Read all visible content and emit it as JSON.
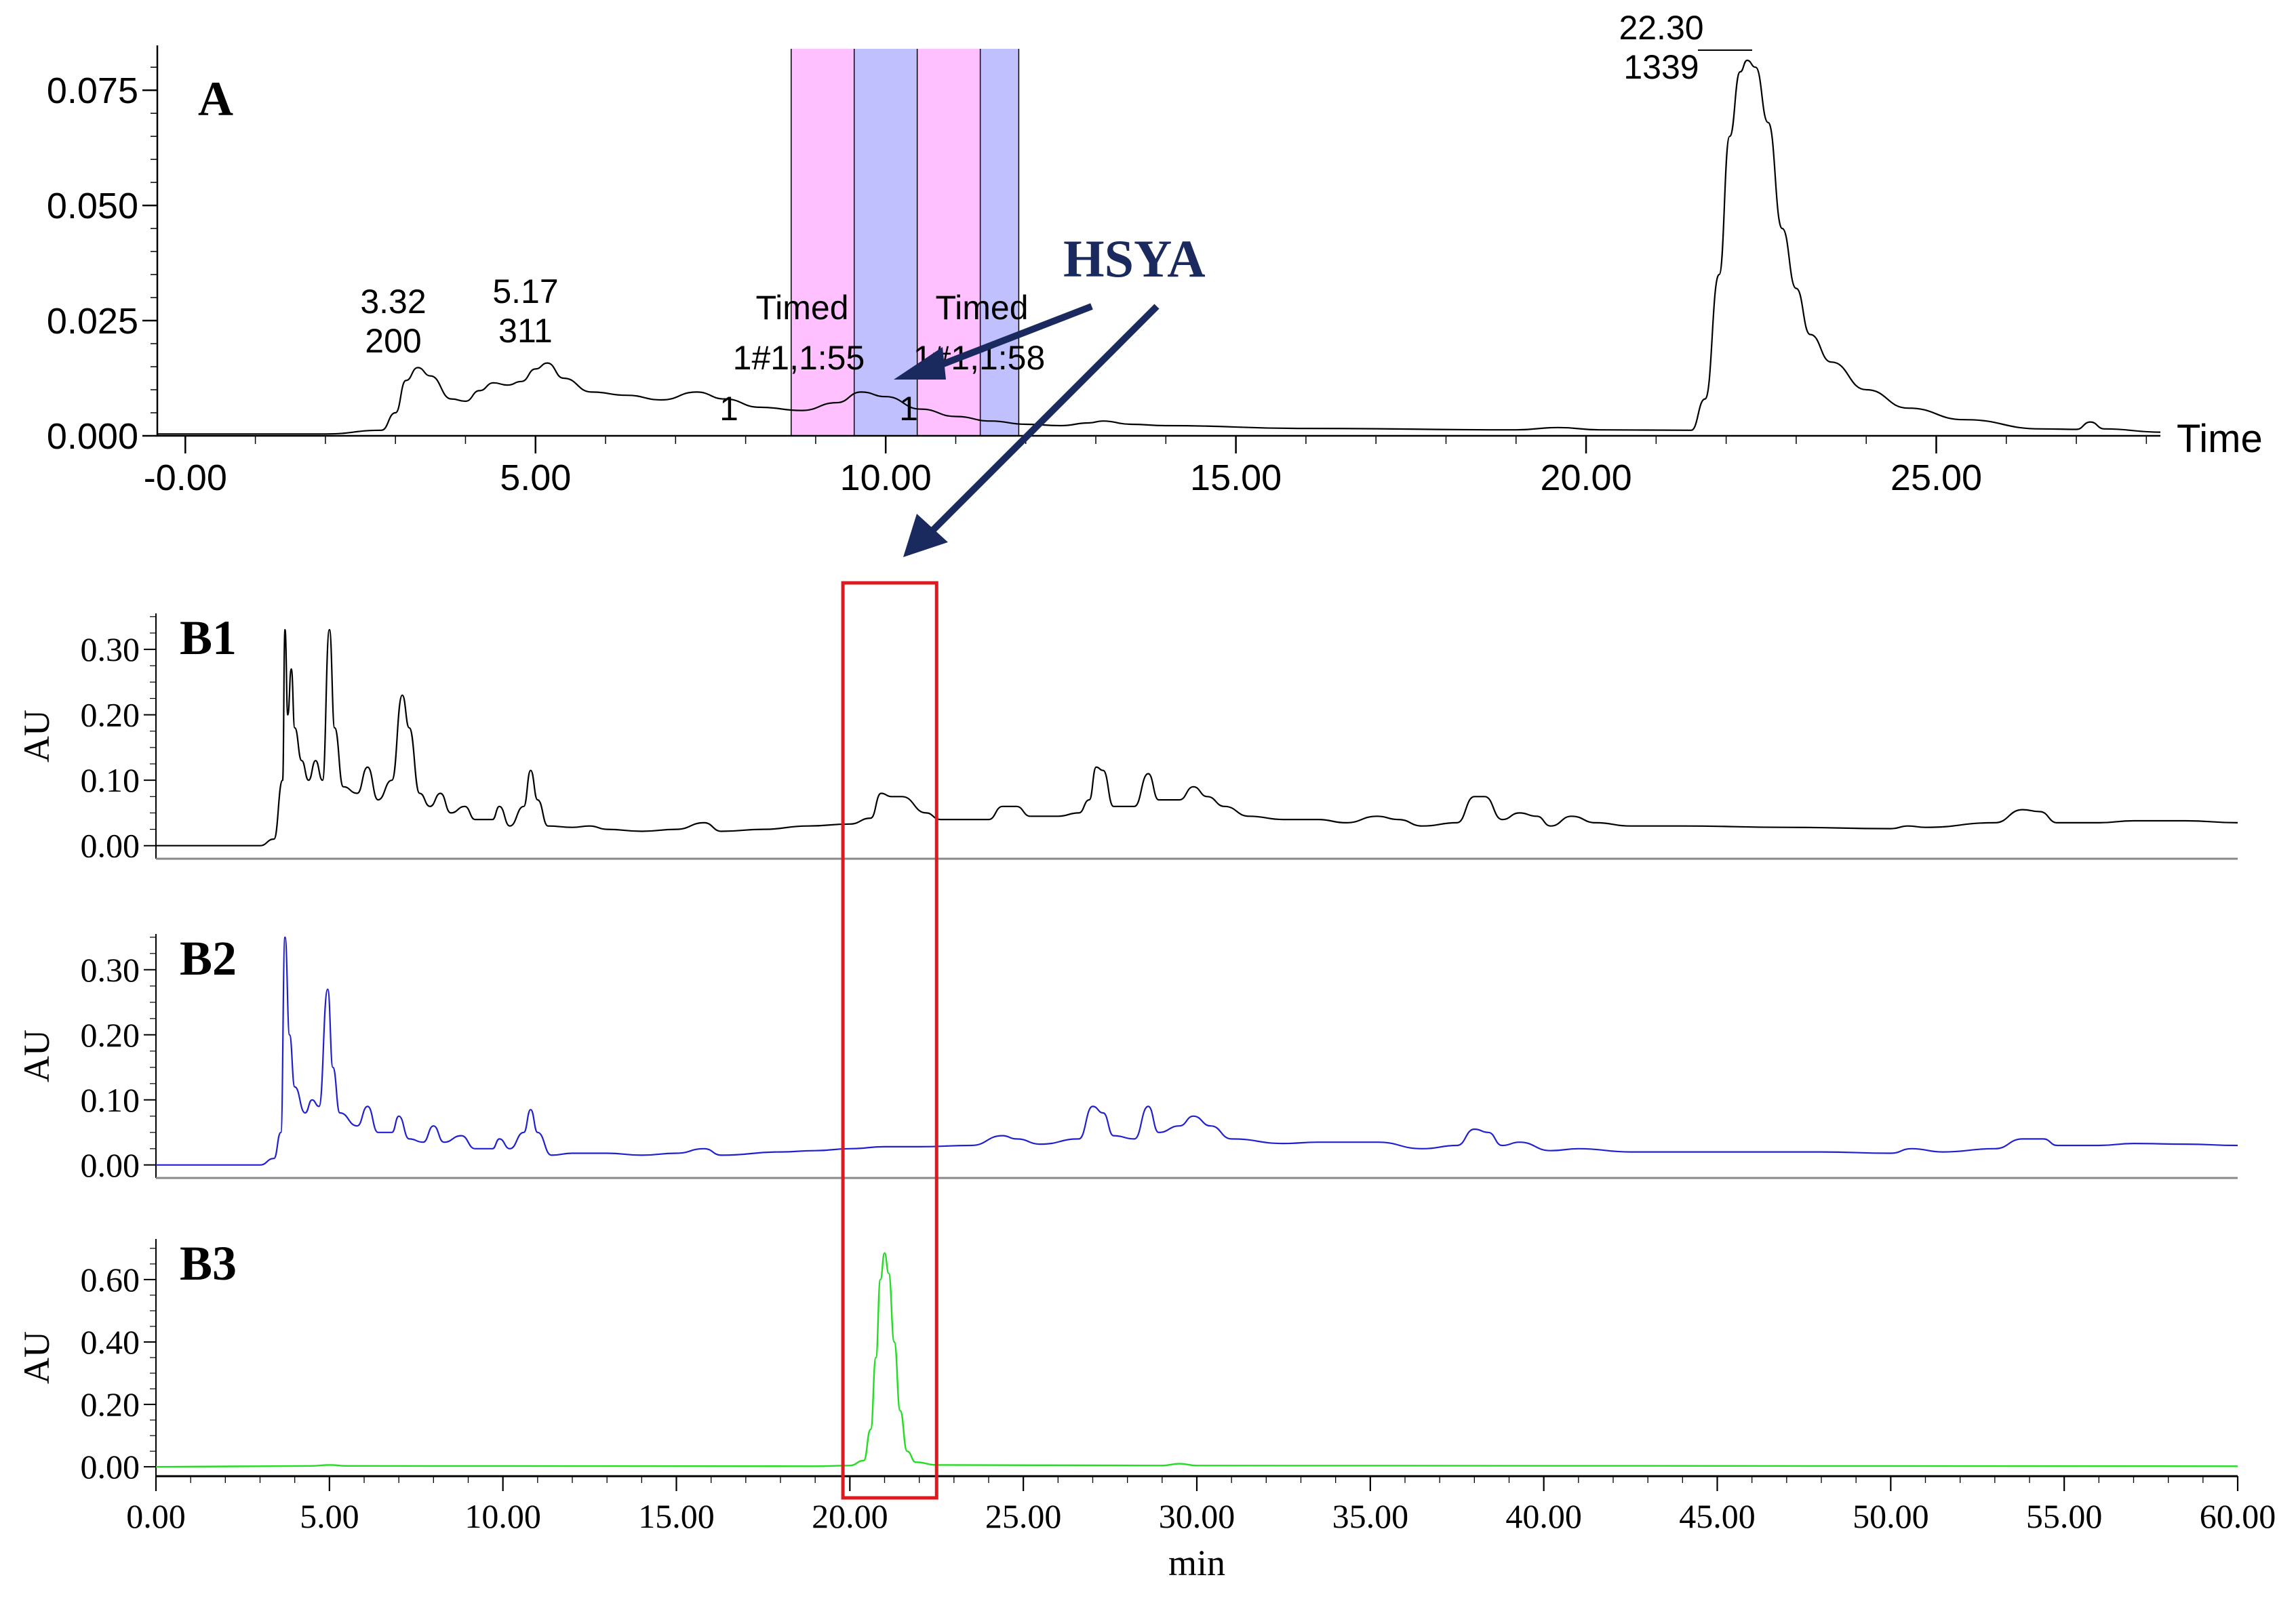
{
  "figure": {
    "hsya_label": "HSYA",
    "hsya_color": "#1a2a5e",
    "highlight_box_color": "#e0191f",
    "fraction_colors": [
      "#ffc0ff",
      "#c0c0ff",
      "#ffc0ff",
      "#c0c0ff"
    ]
  },
  "chart_data": [
    {
      "id": "A",
      "type": "line",
      "panel_label": "A",
      "xlabel": "Time",
      "ylabel": "",
      "xlim": [
        -0.4,
        28.2
      ],
      "ylim": [
        0.0,
        0.084
      ],
      "x_ticks": [
        -0.0,
        5.0,
        10.0,
        15.0,
        20.0,
        25.0
      ],
      "x_tick_labels": [
        "-0.00",
        "5.00",
        "10.00",
        "15.00",
        "20.00",
        "25.00"
      ],
      "y_ticks": [
        0.0,
        0.025,
        0.05,
        0.075
      ],
      "y_tick_labels": [
        "0.000",
        "0.025",
        "0.050",
        "0.075"
      ],
      "color": "#000000",
      "fraction_bands": [
        {
          "start": 8.65,
          "end": 9.55
        },
        {
          "start": 9.55,
          "end": 10.45
        },
        {
          "start": 10.45,
          "end": 11.35
        },
        {
          "start": 11.35,
          "end": 11.9
        }
      ],
      "peak_labels": [
        {
          "x": 3.32,
          "lines": [
            "3.32",
            "200"
          ]
        },
        {
          "x": 5.17,
          "lines": [
            "5.17",
            "311"
          ]
        },
        {
          "x": 22.3,
          "lines": [
            "22.30",
            "1339"
          ]
        }
      ],
      "fraction_labels": [
        {
          "lines": [
            "Timed",
            "1#1,1:55",
            "1"
          ]
        },
        {
          "lines": [
            "Timed",
            "1#1,1:58",
            "1"
          ]
        }
      ],
      "baseline": [
        [
          -0.4,
          0.0004
        ],
        [
          2.0,
          0.0004
        ],
        [
          2.8,
          0.0012
        ],
        [
          3.0,
          0.005
        ],
        [
          3.15,
          0.012
        ],
        [
          3.32,
          0.0148
        ],
        [
          3.5,
          0.013
        ],
        [
          3.8,
          0.008
        ],
        [
          4.0,
          0.0075
        ],
        [
          4.2,
          0.0098
        ],
        [
          4.4,
          0.0115
        ],
        [
          4.6,
          0.011
        ],
        [
          4.8,
          0.0118
        ],
        [
          5.0,
          0.0145
        ],
        [
          5.17,
          0.0158
        ],
        [
          5.4,
          0.0125
        ],
        [
          5.8,
          0.0095
        ],
        [
          6.3,
          0.0088
        ],
        [
          6.8,
          0.0078
        ],
        [
          7.3,
          0.0095
        ],
        [
          7.7,
          0.008
        ],
        [
          8.2,
          0.0062
        ],
        [
          8.8,
          0.0055
        ],
        [
          9.3,
          0.0072
        ],
        [
          9.65,
          0.0095
        ],
        [
          10.0,
          0.0085
        ],
        [
          10.5,
          0.0058
        ],
        [
          11.0,
          0.0042
        ],
        [
          11.5,
          0.0032
        ],
        [
          12.0,
          0.0025
        ],
        [
          12.5,
          0.0022
        ],
        [
          12.9,
          0.0028
        ],
        [
          13.1,
          0.0032
        ],
        [
          13.5,
          0.0025
        ],
        [
          14.0,
          0.0022
        ],
        [
          16.0,
          0.0016
        ],
        [
          19.0,
          0.0013
        ],
        [
          19.6,
          0.0018
        ],
        [
          20.2,
          0.0013
        ],
        [
          21.5,
          0.0012
        ],
        [
          21.7,
          0.008
        ],
        [
          21.9,
          0.035
        ],
        [
          22.05,
          0.065
        ],
        [
          22.2,
          0.079
        ],
        [
          22.3,
          0.0815
        ],
        [
          22.42,
          0.08
        ],
        [
          22.6,
          0.068
        ],
        [
          22.8,
          0.045
        ],
        [
          23.0,
          0.032
        ],
        [
          23.2,
          0.022
        ],
        [
          23.5,
          0.016
        ],
        [
          24.0,
          0.01
        ],
        [
          24.6,
          0.006
        ],
        [
          25.4,
          0.0035
        ],
        [
          26.5,
          0.0015
        ],
        [
          27.0,
          0.0014
        ],
        [
          27.2,
          0.003
        ],
        [
          27.4,
          0.0015
        ],
        [
          28.2,
          0.0008
        ]
      ]
    },
    {
      "id": "B1",
      "type": "line",
      "panel_label": "B1",
      "xlabel": "",
      "ylabel": "AU",
      "xlim": [
        0,
        60
      ],
      "ylim": [
        -0.02,
        0.355
      ],
      "y_ticks": [
        0.0,
        0.1,
        0.2,
        0.3
      ],
      "y_tick_labels": [
        "0.00",
        "0.10",
        "0.20",
        "0.30"
      ],
      "color": "#000000",
      "series": [
        [
          0,
          0.0
        ],
        [
          3.0,
          0.0
        ],
        [
          3.4,
          0.01
        ],
        [
          3.65,
          0.1
        ],
        [
          3.72,
          0.33
        ],
        [
          3.8,
          0.2
        ],
        [
          3.9,
          0.27
        ],
        [
          4.0,
          0.18
        ],
        [
          4.2,
          0.13
        ],
        [
          4.4,
          0.1
        ],
        [
          4.6,
          0.13
        ],
        [
          4.8,
          0.1
        ],
        [
          5.0,
          0.33
        ],
        [
          5.15,
          0.18
        ],
        [
          5.4,
          0.09
        ],
        [
          5.8,
          0.08
        ],
        [
          6.1,
          0.12
        ],
        [
          6.4,
          0.07
        ],
        [
          6.8,
          0.1
        ],
        [
          7.1,
          0.23
        ],
        [
          7.3,
          0.18
        ],
        [
          7.6,
          0.08
        ],
        [
          7.9,
          0.06
        ],
        [
          8.2,
          0.08
        ],
        [
          8.5,
          0.05
        ],
        [
          8.9,
          0.06
        ],
        [
          9.2,
          0.04
        ],
        [
          9.7,
          0.04
        ],
        [
          9.9,
          0.06
        ],
        [
          10.2,
          0.03
        ],
        [
          10.6,
          0.06
        ],
        [
          10.8,
          0.115
        ],
        [
          11.0,
          0.07
        ],
        [
          11.3,
          0.03
        ],
        [
          12.0,
          0.028
        ],
        [
          12.5,
          0.03
        ],
        [
          13.0,
          0.025
        ],
        [
          14.0,
          0.022
        ],
        [
          15.0,
          0.025
        ],
        [
          15.8,
          0.035
        ],
        [
          16.3,
          0.022
        ],
        [
          17.5,
          0.025
        ],
        [
          18.8,
          0.03
        ],
        [
          20.0,
          0.033
        ],
        [
          20.6,
          0.042
        ],
        [
          20.9,
          0.08
        ],
        [
          21.2,
          0.075
        ],
        [
          21.5,
          0.075
        ],
        [
          22.2,
          0.05
        ],
        [
          22.6,
          0.04
        ],
        [
          23.5,
          0.04
        ],
        [
          24.0,
          0.04
        ],
        [
          24.4,
          0.06
        ],
        [
          24.8,
          0.06
        ],
        [
          25.2,
          0.045
        ],
        [
          26.0,
          0.045
        ],
        [
          26.6,
          0.05
        ],
        [
          26.9,
          0.07
        ],
        [
          27.1,
          0.12
        ],
        [
          27.3,
          0.115
        ],
        [
          27.6,
          0.06
        ],
        [
          28.2,
          0.06
        ],
        [
          28.6,
          0.11
        ],
        [
          28.9,
          0.07
        ],
        [
          29.5,
          0.07
        ],
        [
          29.9,
          0.09
        ],
        [
          30.3,
          0.075
        ],
        [
          30.8,
          0.06
        ],
        [
          31.5,
          0.045
        ],
        [
          32.5,
          0.04
        ],
        [
          33.5,
          0.04
        ],
        [
          34.3,
          0.035
        ],
        [
          35.2,
          0.045
        ],
        [
          35.8,
          0.04
        ],
        [
          36.5,
          0.03
        ],
        [
          37.5,
          0.035
        ],
        [
          38.0,
          0.075
        ],
        [
          38.3,
          0.075
        ],
        [
          38.8,
          0.04
        ],
        [
          39.3,
          0.05
        ],
        [
          39.8,
          0.045
        ],
        [
          40.2,
          0.03
        ],
        [
          40.8,
          0.045
        ],
        [
          41.5,
          0.035
        ],
        [
          42.5,
          0.03
        ],
        [
          44.0,
          0.03
        ],
        [
          47.0,
          0.028
        ],
        [
          50.0,
          0.026
        ],
        [
          50.5,
          0.03
        ],
        [
          51.0,
          0.028
        ],
        [
          53.0,
          0.035
        ],
        [
          53.8,
          0.055
        ],
        [
          54.3,
          0.052
        ],
        [
          54.8,
          0.035
        ],
        [
          56.0,
          0.035
        ],
        [
          57.0,
          0.038
        ],
        [
          58.5,
          0.038
        ],
        [
          60,
          0.035
        ]
      ]
    },
    {
      "id": "B2",
      "type": "line",
      "panel_label": "B2",
      "xlabel": "",
      "ylabel": "AU",
      "xlim": [
        0,
        60
      ],
      "ylim": [
        -0.02,
        0.355
      ],
      "y_ticks": [
        0.0,
        0.1,
        0.2,
        0.3
      ],
      "y_tick_labels": [
        "0.00",
        "0.10",
        "0.20",
        "0.30"
      ],
      "color": "#2020d0",
      "series": [
        [
          0,
          0.0
        ],
        [
          3.0,
          0.0
        ],
        [
          3.4,
          0.01
        ],
        [
          3.6,
          0.05
        ],
        [
          3.72,
          0.35
        ],
        [
          3.85,
          0.2
        ],
        [
          4.0,
          0.12
        ],
        [
          4.3,
          0.08
        ],
        [
          4.5,
          0.1
        ],
        [
          4.7,
          0.09
        ],
        [
          4.95,
          0.27
        ],
        [
          5.1,
          0.15
        ],
        [
          5.3,
          0.08
        ],
        [
          5.8,
          0.06
        ],
        [
          6.1,
          0.09
        ],
        [
          6.4,
          0.05
        ],
        [
          6.8,
          0.05
        ],
        [
          7.0,
          0.075
        ],
        [
          7.3,
          0.04
        ],
        [
          7.7,
          0.035
        ],
        [
          8.0,
          0.06
        ],
        [
          8.3,
          0.035
        ],
        [
          8.8,
          0.045
        ],
        [
          9.2,
          0.025
        ],
        [
          9.7,
          0.025
        ],
        [
          9.9,
          0.04
        ],
        [
          10.2,
          0.025
        ],
        [
          10.6,
          0.05
        ],
        [
          10.8,
          0.085
        ],
        [
          11.0,
          0.05
        ],
        [
          11.4,
          0.015
        ],
        [
          12.0,
          0.018
        ],
        [
          13.0,
          0.018
        ],
        [
          14.0,
          0.015
        ],
        [
          15.0,
          0.018
        ],
        [
          15.8,
          0.025
        ],
        [
          16.3,
          0.015
        ],
        [
          18.0,
          0.02
        ],
        [
          19.0,
          0.022
        ],
        [
          20.0,
          0.025
        ],
        [
          21.0,
          0.028
        ],
        [
          22.0,
          0.028
        ],
        [
          23.5,
          0.03
        ],
        [
          24.4,
          0.045
        ],
        [
          24.8,
          0.04
        ],
        [
          25.5,
          0.032
        ],
        [
          26.6,
          0.04
        ],
        [
          27.0,
          0.09
        ],
        [
          27.3,
          0.08
        ],
        [
          27.6,
          0.045
        ],
        [
          28.2,
          0.04
        ],
        [
          28.6,
          0.09
        ],
        [
          28.9,
          0.05
        ],
        [
          29.5,
          0.06
        ],
        [
          29.9,
          0.075
        ],
        [
          30.4,
          0.06
        ],
        [
          31.0,
          0.04
        ],
        [
          32.5,
          0.033
        ],
        [
          33.5,
          0.035
        ],
        [
          35.2,
          0.035
        ],
        [
          36.5,
          0.025
        ],
        [
          37.5,
          0.03
        ],
        [
          38.0,
          0.055
        ],
        [
          38.4,
          0.05
        ],
        [
          38.8,
          0.03
        ],
        [
          39.3,
          0.035
        ],
        [
          40.2,
          0.022
        ],
        [
          41.0,
          0.025
        ],
        [
          42.5,
          0.02
        ],
        [
          45.0,
          0.02
        ],
        [
          48.0,
          0.02
        ],
        [
          50.0,
          0.018
        ],
        [
          50.6,
          0.025
        ],
        [
          51.5,
          0.02
        ],
        [
          53.0,
          0.025
        ],
        [
          53.8,
          0.04
        ],
        [
          54.4,
          0.04
        ],
        [
          54.8,
          0.03
        ],
        [
          56.0,
          0.03
        ],
        [
          57.0,
          0.033
        ],
        [
          58.5,
          0.032
        ],
        [
          60,
          0.03
        ]
      ]
    },
    {
      "id": "B3",
      "type": "line",
      "panel_label": "B3",
      "xlabel": "min",
      "ylabel": "AU",
      "xlim": [
        0,
        60
      ],
      "ylim": [
        -0.03,
        0.73
      ],
      "y_ticks": [
        0.0,
        0.2,
        0.4,
        0.6
      ],
      "y_tick_labels": [
        "0.00",
        "0.20",
        "0.40",
        "0.60"
      ],
      "x_ticks": [
        0,
        5,
        10,
        15,
        20,
        25,
        30,
        35,
        40,
        45,
        50,
        55,
        60
      ],
      "x_tick_labels": [
        "0.00",
        "5.00",
        "10.00",
        "15.00",
        "20.00",
        "25.00",
        "30.00",
        "35.00",
        "40.00",
        "45.00",
        "50.00",
        "55.00",
        "60.00"
      ],
      "color": "#22dd22",
      "series": [
        [
          0,
          0.0
        ],
        [
          4.5,
          0.003
        ],
        [
          5.0,
          0.006
        ],
        [
          5.5,
          0.003
        ],
        [
          19.0,
          0.002
        ],
        [
          20.0,
          0.004
        ],
        [
          20.4,
          0.02
        ],
        [
          20.6,
          0.12
        ],
        [
          20.75,
          0.35
        ],
        [
          20.88,
          0.6
        ],
        [
          21.0,
          0.685
        ],
        [
          21.12,
          0.62
        ],
        [
          21.28,
          0.4
        ],
        [
          21.45,
          0.18
        ],
        [
          21.65,
          0.05
        ],
        [
          21.9,
          0.015
        ],
        [
          22.5,
          0.006
        ],
        [
          29.0,
          0.004
        ],
        [
          29.5,
          0.01
        ],
        [
          30.0,
          0.004
        ],
        [
          60,
          0.002
        ]
      ]
    }
  ],
  "highlight_box_range": [
    19.8,
    22.5
  ]
}
